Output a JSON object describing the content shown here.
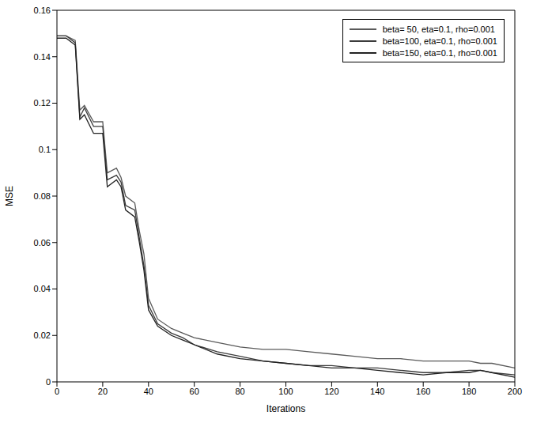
{
  "chart_data": {
    "type": "line",
    "x_label": "Iterations",
    "y_label": "MSE",
    "x": [
      0,
      4,
      8,
      10,
      12,
      16,
      20,
      22,
      26,
      28,
      30,
      34,
      36,
      38,
      40,
      44,
      50,
      55,
      60,
      70,
      80,
      90,
      100,
      110,
      120,
      130,
      140,
      150,
      160,
      170,
      180,
      185,
      190,
      200
    ],
    "series": [
      {
        "name": "beta= 50, eta=0.1, rho=0.001",
        "color": "#5a5a5a",
        "values": [
          0.149,
          0.149,
          0.147,
          0.117,
          0.119,
          0.112,
          0.112,
          0.09,
          0.092,
          0.088,
          0.08,
          0.077,
          0.065,
          0.055,
          0.036,
          0.027,
          0.023,
          0.021,
          0.019,
          0.017,
          0.015,
          0.014,
          0.014,
          0.013,
          0.012,
          0.011,
          0.01,
          0.01,
          0.009,
          0.009,
          0.009,
          0.008,
          0.008,
          0.006
        ]
      },
      {
        "name": "beta=100, eta=0.1, rho=0.001",
        "color": "#3c3c3c",
        "values": [
          0.149,
          0.149,
          0.146,
          0.114,
          0.118,
          0.11,
          0.11,
          0.087,
          0.089,
          0.086,
          0.076,
          0.074,
          0.062,
          0.05,
          0.033,
          0.025,
          0.021,
          0.019,
          0.016,
          0.013,
          0.011,
          0.009,
          0.008,
          0.007,
          0.007,
          0.006,
          0.006,
          0.005,
          0.004,
          0.004,
          0.005,
          0.005,
          0.004,
          0.003
        ]
      },
      {
        "name": "beta=150, eta=0.1, rho=0.001",
        "color": "#222222",
        "values": [
          0.148,
          0.148,
          0.145,
          0.113,
          0.115,
          0.107,
          0.107,
          0.084,
          0.087,
          0.084,
          0.074,
          0.071,
          0.06,
          0.048,
          0.031,
          0.024,
          0.02,
          0.018,
          0.016,
          0.012,
          0.01,
          0.009,
          0.008,
          0.007,
          0.006,
          0.006,
          0.005,
          0.004,
          0.003,
          0.004,
          0.004,
          0.005,
          0.004,
          0.002
        ]
      }
    ],
    "xlim": [
      0,
      200
    ],
    "xticks": [
      0,
      20,
      40,
      60,
      80,
      100,
      120,
      140,
      160,
      180,
      200
    ],
    "ylim": [
      0,
      0.16
    ],
    "yticks": [
      0,
      0.02,
      0.04,
      0.06,
      0.08,
      0.1,
      0.12,
      0.14,
      0.16
    ],
    "grid": false,
    "legend": "top-right"
  }
}
